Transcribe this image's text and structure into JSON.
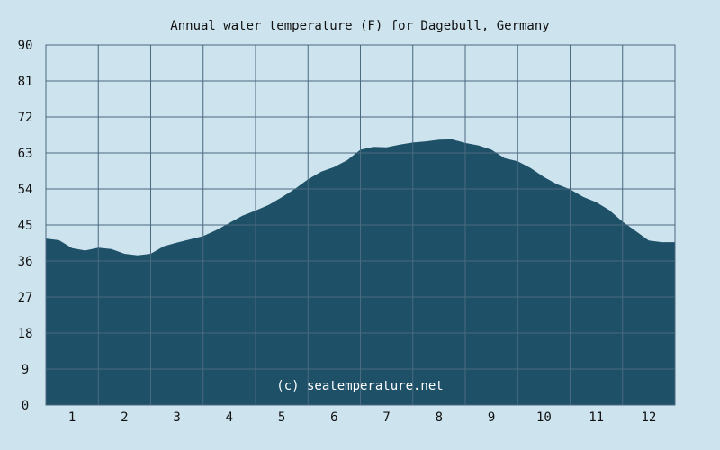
{
  "chart_data": {
    "type": "area",
    "title": "Annual water temperature (F) for Dagebull, Germany",
    "xlabel": "",
    "ylabel": "",
    "x_ticks": [
      "1",
      "2",
      "3",
      "4",
      "5",
      "6",
      "7",
      "8",
      "9",
      "10",
      "11",
      "12"
    ],
    "y_ticks": [
      "0",
      "9",
      "18",
      "27",
      "36",
      "45",
      "54",
      "63",
      "72",
      "81",
      "90"
    ],
    "xlim": [
      0.5,
      12.5
    ],
    "ylim": [
      0,
      90
    ],
    "grid": true,
    "colors": {
      "fill": "#1e5068",
      "background": "#cde3ee",
      "grid": "#4a6a80"
    },
    "watermark": "(c) seatemperature.net",
    "series": [
      {
        "x": [
          0.5,
          0.75,
          1.0,
          1.25,
          1.5,
          1.75,
          2.0,
          2.25,
          2.5,
          2.75,
          3.0,
          3.25,
          3.5,
          3.75,
          4.0,
          4.25,
          4.5,
          4.75,
          5.0,
          5.25,
          5.5,
          5.75,
          6.0,
          6.25,
          6.5,
          6.75,
          7.0,
          7.25,
          7.5,
          7.75,
          8.0,
          8.25,
          8.5,
          8.75,
          9.0,
          9.25,
          9.5,
          9.75,
          10.0,
          10.25,
          10.5,
          10.75,
          11.0,
          11.25,
          11.5,
          11.75,
          12.0,
          12.25,
          12.5
        ],
        "values": [
          41.6,
          41.2,
          39.2,
          38.6,
          39.3,
          39.0,
          37.8,
          37.4,
          37.8,
          39.7,
          40.6,
          41.4,
          42.2,
          43.7,
          45.5,
          47.3,
          48.6,
          50.0,
          51.9,
          54.0,
          56.4,
          58.3,
          59.5,
          61.2,
          63.8,
          64.5,
          64.4,
          65.1,
          65.6,
          65.9,
          66.3,
          66.4,
          65.5,
          64.9,
          63.8,
          61.7,
          60.9,
          59.2,
          57.0,
          55.2,
          53.9,
          52.0,
          50.7,
          48.7,
          45.8,
          43.5,
          41.1,
          40.7,
          40.7
        ]
      }
    ]
  }
}
